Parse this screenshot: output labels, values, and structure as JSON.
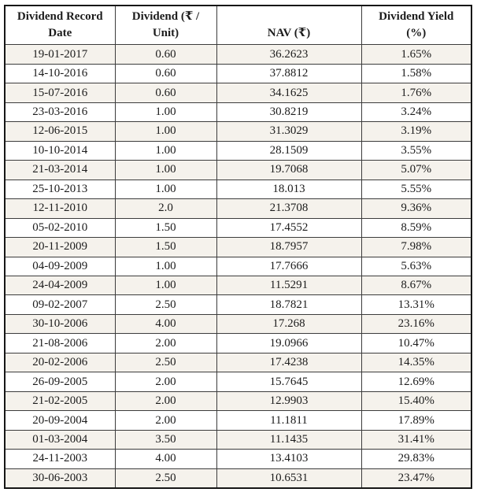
{
  "chart_data": {
    "type": "table",
    "columns": [
      "Dividend Record Date",
      "Dividend (₹ / Unit)",
      "NAV (₹)",
      "Dividend Yield (%)"
    ],
    "rows": [
      [
        "19-01-2017",
        "0.60",
        "36.2623",
        "1.65%"
      ],
      [
        "14-10-2016",
        "0.60",
        "37.8812",
        "1.58%"
      ],
      [
        "15-07-2016",
        "0.60",
        "34.1625",
        "1.76%"
      ],
      [
        "23-03-2016",
        "1.00",
        "30.8219",
        "3.24%"
      ],
      [
        "12-06-2015",
        "1.00",
        "31.3029",
        "3.19%"
      ],
      [
        "10-10-2014",
        "1.00",
        "28.1509",
        "3.55%"
      ],
      [
        "21-03-2014",
        "1.00",
        "19.7068",
        "5.07%"
      ],
      [
        "25-10-2013",
        "1.00",
        "18.013",
        "5.55%"
      ],
      [
        "12-11-2010",
        "2.0",
        "21.3708",
        "9.36%"
      ],
      [
        "05-02-2010",
        "1.50",
        "17.4552",
        "8.59%"
      ],
      [
        "20-11-2009",
        "1.50",
        "18.7957",
        "7.98%"
      ],
      [
        "04-09-2009",
        "1.00",
        "17.7666",
        "5.63%"
      ],
      [
        "24-04-2009",
        "1.00",
        "11.5291",
        "8.67%"
      ],
      [
        "09-02-2007",
        "2.50",
        "18.7821",
        "13.31%"
      ],
      [
        "30-10-2006",
        "4.00",
        "17.268",
        "23.16%"
      ],
      [
        "21-08-2006",
        "2.00",
        "19.0966",
        "10.47%"
      ],
      [
        "20-02-2006",
        "2.50",
        "17.4238",
        "14.35%"
      ],
      [
        "26-09-2005",
        "2.00",
        "15.7645",
        "12.69%"
      ],
      [
        "21-02-2005",
        "2.00",
        "12.9903",
        "15.40%"
      ],
      [
        "20-09-2004",
        "2.00",
        "11.1811",
        "17.89%"
      ],
      [
        "01-03-2004",
        "3.50",
        "11.1435",
        "31.41%"
      ],
      [
        "24-11-2003",
        "4.00",
        "13.4103",
        "29.83%"
      ],
      [
        "30-06-2003",
        "2.50",
        "10.6531",
        "23.47%"
      ]
    ]
  },
  "colors": {
    "row_band": "#f5f2ec",
    "row_plain": "#ffffff",
    "border_inner": "#3c3c3c",
    "border_outer": "#161616",
    "text": "#1c1c1c"
  }
}
